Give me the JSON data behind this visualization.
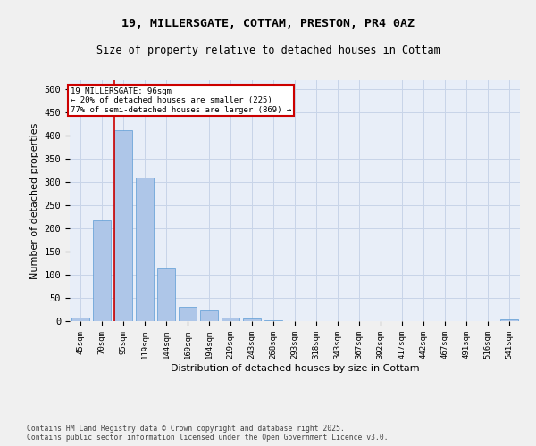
{
  "title1": "19, MILLERSGATE, COTTAM, PRESTON, PR4 0AZ",
  "title2": "Size of property relative to detached houses in Cottam",
  "xlabel": "Distribution of detached houses by size in Cottam",
  "ylabel": "Number of detached properties",
  "categories": [
    "45sqm",
    "70sqm",
    "95sqm",
    "119sqm",
    "144sqm",
    "169sqm",
    "194sqm",
    "219sqm",
    "243sqm",
    "268sqm",
    "293sqm",
    "318sqm",
    "343sqm",
    "367sqm",
    "392sqm",
    "417sqm",
    "442sqm",
    "467sqm",
    "491sqm",
    "516sqm",
    "541sqm"
  ],
  "values": [
    8,
    218,
    412,
    310,
    113,
    30,
    23,
    8,
    6,
    2,
    0,
    0,
    0,
    0,
    0,
    0,
    0,
    0,
    0,
    0,
    3
  ],
  "bar_color": "#aec6e8",
  "bar_edge_color": "#5b9bd5",
  "property_line_x": 2,
  "annotation_title": "19 MILLERSGATE: 96sqm",
  "annotation_line1": "← 20% of detached houses are smaller (225)",
  "annotation_line2": "77% of semi-detached houses are larger (869) →",
  "annotation_box_color": "#ffffff",
  "annotation_box_edge": "#cc0000",
  "vline_color": "#cc0000",
  "ylim": [
    0,
    520
  ],
  "yticks": [
    0,
    50,
    100,
    150,
    200,
    250,
    300,
    350,
    400,
    450,
    500
  ],
  "grid_color": "#c8d4e8",
  "bg_color": "#e8eef8",
  "fig_bg_color": "#f0f0f0",
  "footer1": "Contains HM Land Registry data © Crown copyright and database right 2025.",
  "footer2": "Contains public sector information licensed under the Open Government Licence v3.0."
}
